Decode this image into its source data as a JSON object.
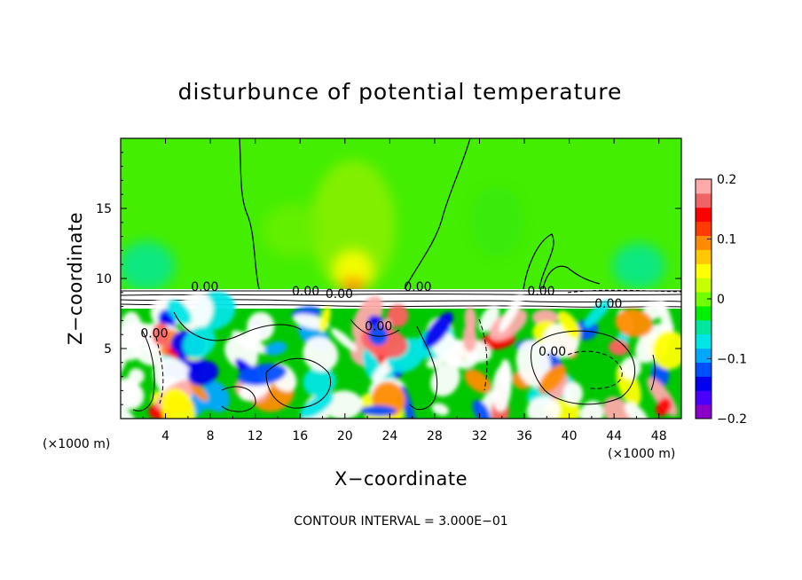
{
  "chart_data": {
    "type": "heatmap",
    "title": "disturbunce of potential temperature",
    "xlabel": "X−coordinate",
    "ylabel": "Z−coordinate",
    "x_unit_left": "(×1000 m)",
    "x_unit_right": "(×1000 m)",
    "xlim": [
      0,
      50
    ],
    "ylim": [
      0,
      20
    ],
    "x_ticks": [
      4,
      8,
      12,
      16,
      20,
      24,
      28,
      32,
      36,
      40,
      44,
      48
    ],
    "y_ticks": [
      5,
      10,
      15
    ],
    "colorbar": {
      "range": [
        -0.2,
        0.2
      ],
      "tick_values": [
        0.2,
        0.1,
        0,
        -0.1,
        -0.2
      ],
      "tick_labels": [
        "0.2",
        "0.1",
        "0",
        "−0.1",
        "−0.2"
      ]
    },
    "contour_labels": [
      {
        "text": "0.00",
        "x": 7.5,
        "y": 9.1
      },
      {
        "text": "0.00",
        "x": 16.5,
        "y": 8.8
      },
      {
        "text": "0.00",
        "x": 19.5,
        "y": 8.6
      },
      {
        "text": "0.00",
        "x": 26.5,
        "y": 9.1
      },
      {
        "text": "0.00",
        "x": 37.5,
        "y": 8.8
      },
      {
        "text": "0.00",
        "x": 43.5,
        "y": 7.9
      },
      {
        "text": "0.00",
        "x": 3.0,
        "y": 5.8
      },
      {
        "text": "0.00",
        "x": 23.0,
        "y": 6.3
      },
      {
        "text": "0.00",
        "x": 38.5,
        "y": 4.5
      }
    ],
    "footer": "CONTOUR INTERVAL = 3.000E−01"
  },
  "colors": {
    "upper_field": "#44ee00",
    "background": "#ffffff",
    "colormap": [
      "#8a00c8",
      "#4a00ff",
      "#0000f0",
      "#0050ff",
      "#00a8ff",
      "#00e6e6",
      "#00e6a0",
      "#00f000",
      "#70ff00",
      "#c8ff00",
      "#ffff00",
      "#ffc800",
      "#ff8c00",
      "#ff3c00",
      "#ff0000",
      "#f06464",
      "#ffaaaa"
    ]
  }
}
